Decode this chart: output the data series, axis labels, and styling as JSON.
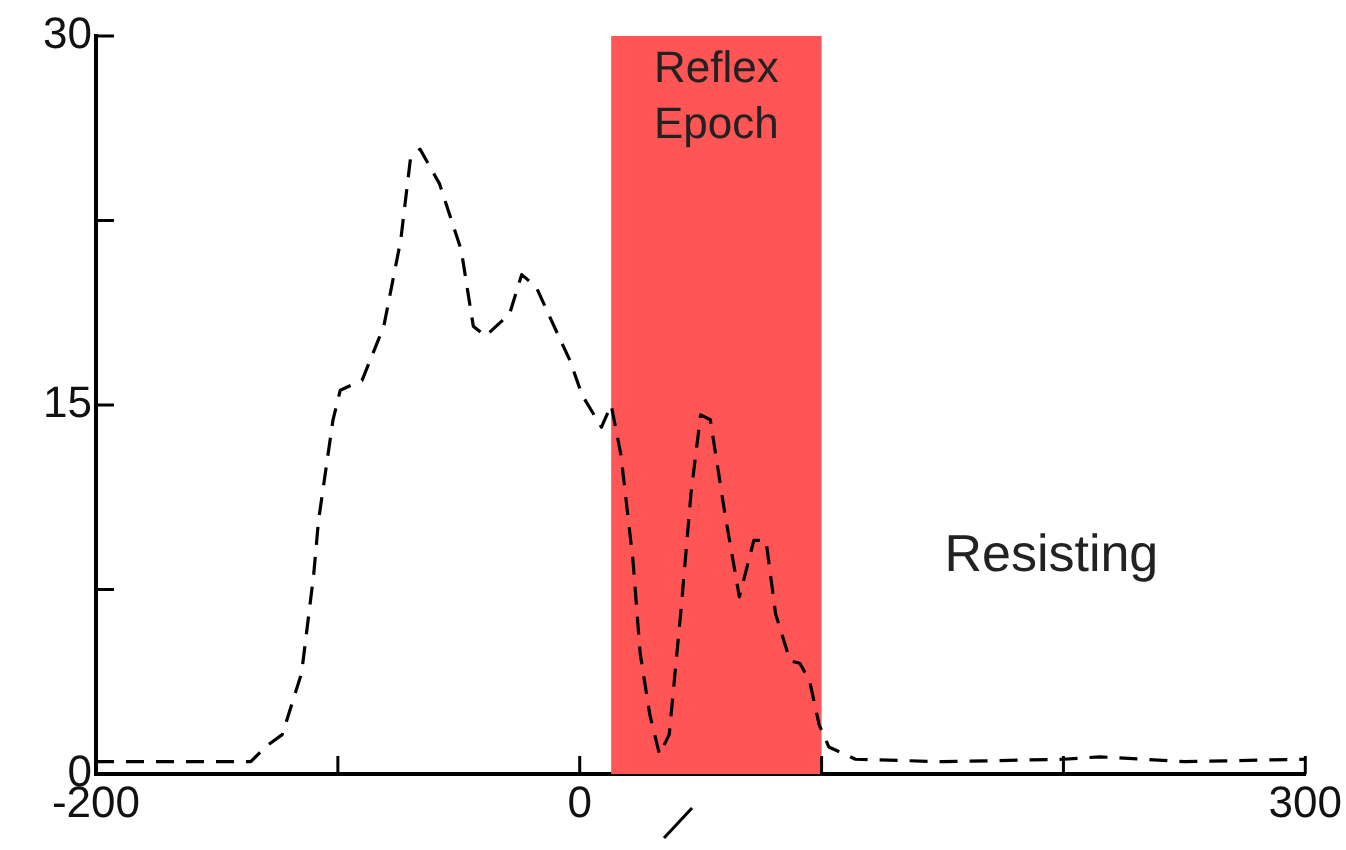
{
  "chart_data": {
    "type": "line",
    "line_style": "dashed",
    "marker": "none",
    "grid": false,
    "legend": false,
    "x": [
      -200,
      -136,
      -130,
      -123,
      -115,
      -110,
      -108,
      -102,
      -99,
      -90,
      -81,
      -74,
      -70,
      -66,
      -58,
      -49,
      -44,
      -39,
      -29,
      -24,
      -18,
      -12,
      -4,
      1,
      9,
      13,
      17,
      22,
      25,
      29,
      33,
      37,
      42,
      46,
      50,
      54,
      60,
      66,
      72,
      77,
      81,
      87,
      91,
      95,
      99,
      103,
      114,
      150,
      200,
      215,
      250,
      300
    ],
    "series": [
      {
        "color": "#000000",
        "values": [
          0.5,
          0.5,
          1.1,
          1.6,
          4.1,
          8.1,
          10.3,
          14.4,
          15.6,
          16,
          18.2,
          21.7,
          25,
          25.4,
          24,
          21.3,
          18.2,
          17.8,
          18.7,
          20.3,
          19.8,
          18.5,
          16.8,
          15.4,
          14.1,
          15,
          13,
          8.7,
          4.9,
          2.4,
          0.8,
          1.6,
          6.8,
          11.4,
          14.6,
          14.4,
          10.6,
          7.2,
          9.5,
          9.5,
          6.5,
          4.6,
          4.5,
          3.8,
          2,
          1.1,
          0.6,
          0.5,
          0.6,
          0.7,
          0.5,
          0.6
        ]
      }
    ],
    "xlim": [
      -200,
      300
    ],
    "xticks": [
      -200,
      {
        "value": -100,
        "label": null
      },
      0,
      {
        "value": 100,
        "label": null
      },
      {
        "value": 200,
        "label": null
      },
      300
    ],
    "ylim": [
      0,
      30
    ],
    "yticks": [
      0,
      {
        "value": 7.5,
        "label": null
      },
      15,
      {
        "value": 22.5,
        "label": null
      },
      30
    ],
    "bands": [
      {
        "axis": "x",
        "from": 13,
        "to": 100,
        "label": "Reflex Epoch",
        "color": "#ff5555"
      }
    ],
    "annotations": [
      "Resisting"
    ]
  }
}
